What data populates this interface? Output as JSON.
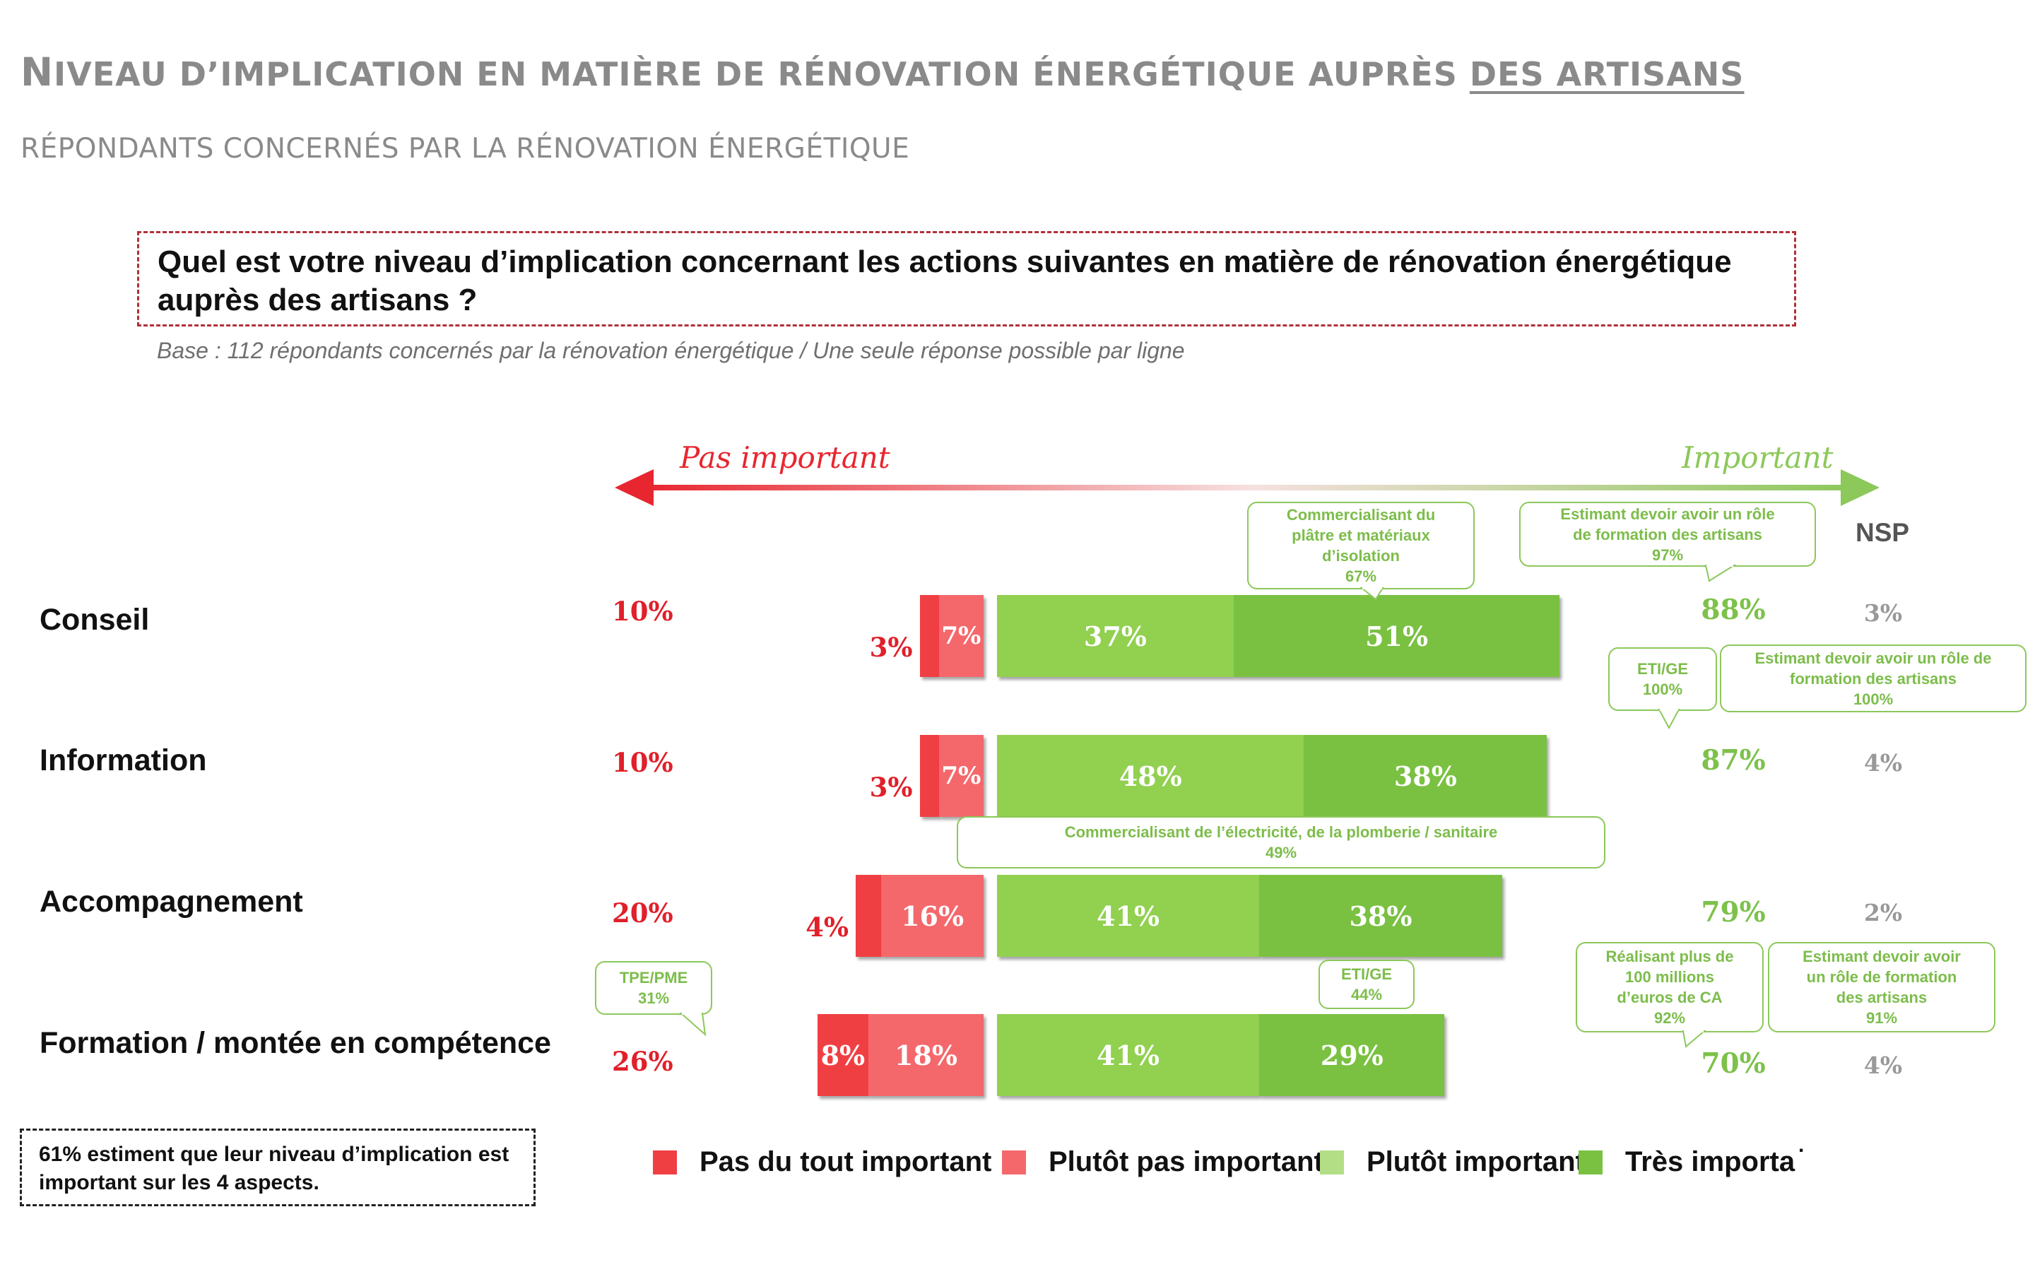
{
  "title": {
    "first_letter": "N",
    "rest": "IVEAU D’IMPLICATION EN MATIÈRE DE RÉNOVATION ÉNERGÉTIQUE AUPRÈS ",
    "underlined": "DES ARTISANS"
  },
  "subtitle": "RÉPONDANTS CONCERNÉS PAR LA RÉNOVATION ÉNERGÉTIQUE",
  "question": "Quel est votre niveau d’implication concernant les actions suivantes en matière de rénovation énergétique auprès des artisans ?",
  "base_note": "Base : 112 répondants concernés par la rénovation énergétique / Une seule réponse possible par ligne",
  "axis": {
    "left_label": "Pas important",
    "right_label": "Important",
    "left_color": "#e8262f",
    "right_color": "#8cc85a"
  },
  "nsp_header": "NSP",
  "colors": {
    "pas_du_tout": "#f03f43",
    "plutot_pas": "#f4686c",
    "plutot": "#92d050",
    "tres": "#7ac142"
  },
  "chart_data": {
    "type": "bar",
    "stacked": true,
    "orientation": "horizontal",
    "categories": [
      "Conseil",
      "Information",
      "Accompagnement",
      "Formation / montée en compétence"
    ],
    "series": [
      {
        "name": "Pas du tout important",
        "values": [
          3,
          3,
          4,
          8
        ],
        "labels": [
          "3%",
          "3%",
          "4%",
          "8%"
        ]
      },
      {
        "name": "Plutôt pas important",
        "values": [
          7,
          7,
          16,
          18
        ],
        "labels": [
          "7%",
          "7%",
          "16%",
          "18%"
        ]
      },
      {
        "name": "Plutôt important",
        "values": [
          37,
          48,
          41,
          41
        ],
        "labels": [
          "37%",
          "48%",
          "41%",
          "41%"
        ]
      },
      {
        "name": "Très importa",
        "values": [
          51,
          38,
          38,
          29
        ],
        "labels": [
          "51%",
          "38%",
          "38%",
          "29%"
        ]
      }
    ],
    "total_not_important": [
      "10%",
      "10%",
      "20%",
      "26%"
    ],
    "total_important": [
      "88%",
      "87%",
      "79%",
      "70%"
    ],
    "nsp": [
      "3%",
      "4%",
      "2%",
      "4%"
    ],
    "legend_position": "bottom"
  },
  "callouts": [
    {
      "lines": [
        "Commercialisant du",
        "plâtre et matériaux",
        "d’isolation",
        "67%"
      ]
    },
    {
      "lines": [
        "Estimant devoir avoir un rôle",
        "de formation des artisans",
        "97%"
      ]
    },
    {
      "lines": [
        "ETI/GE",
        "100%"
      ]
    },
    {
      "lines": [
        "Estimant devoir avoir un rôle de",
        "formation des artisans",
        "100%"
      ]
    },
    {
      "lines": [
        "Commercialisant de l’électricité, de la plomberie / sanitaire",
        "49%"
      ]
    },
    {
      "lines": [
        "TPE/PME",
        "31%"
      ]
    },
    {
      "lines": [
        "ETI/GE",
        "44%"
      ]
    },
    {
      "lines": [
        "Réalisant plus de",
        "100 millions",
        "d’euros de CA",
        "92%"
      ]
    },
    {
      "lines": [
        "Estimant devoir avoir",
        "un rôle de formation",
        "des artisans",
        "91%"
      ]
    }
  ],
  "note": "61% estiment que leur niveau d’implication est important sur les 4 aspects.",
  "legend_trailing_mark": "."
}
